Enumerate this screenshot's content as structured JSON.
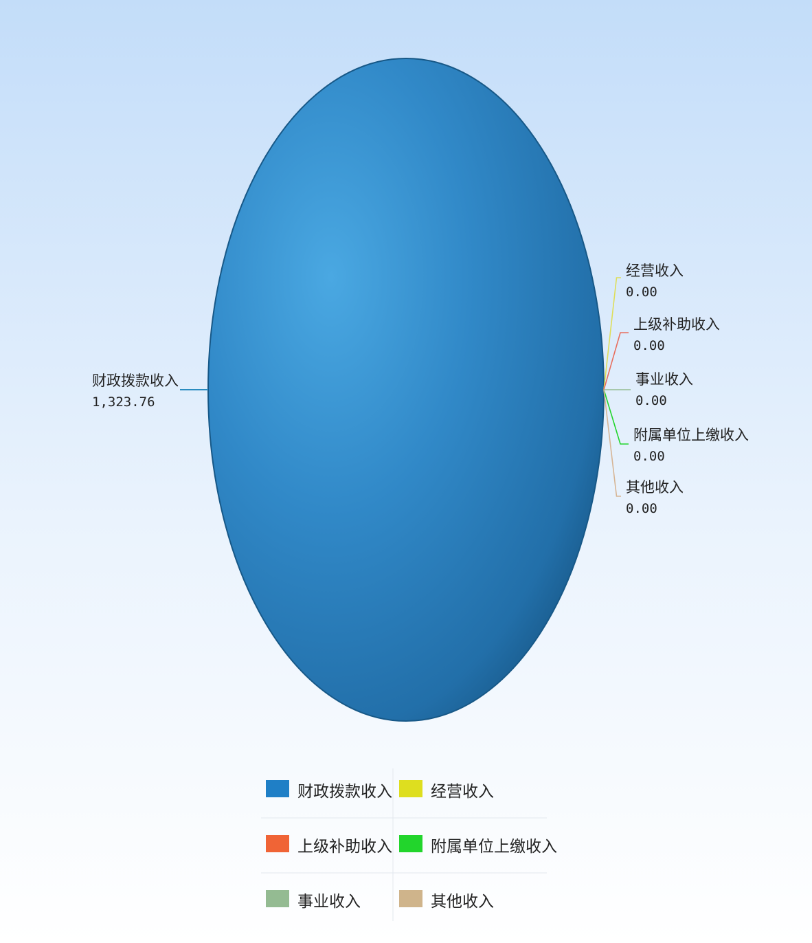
{
  "chart_data": {
    "type": "pie",
    "title": "",
    "categories": [
      "财政拨款收入",
      "经营收入",
      "上级补助收入",
      "事业收入",
      "附属单位上缴收入",
      "其他收入"
    ],
    "values": [
      1323.76,
      0.0,
      0.0,
      0.0,
      0.0,
      0.0
    ],
    "value_labels": [
      "1,323.76",
      "0.00",
      "0.00",
      "0.00",
      "0.00",
      "0.00"
    ],
    "colors": [
      "#1f7fc6",
      "#dede1f",
      "#f06436",
      "#94bb92",
      "#22d52c",
      "#cfb48b"
    ],
    "legend": {
      "position": "bottom",
      "columns": 2,
      "rows": [
        [
          "财政拨款收入",
          "经营收入"
        ],
        [
          "上级补助收入",
          "附属单位上缴收入"
        ],
        [
          "事业收入",
          "其他收入"
        ]
      ]
    },
    "background": {
      "top_color": "#c3ddf9",
      "bottom_color": "#ffffff"
    },
    "pie_main_color": "#2a7dbc"
  }
}
